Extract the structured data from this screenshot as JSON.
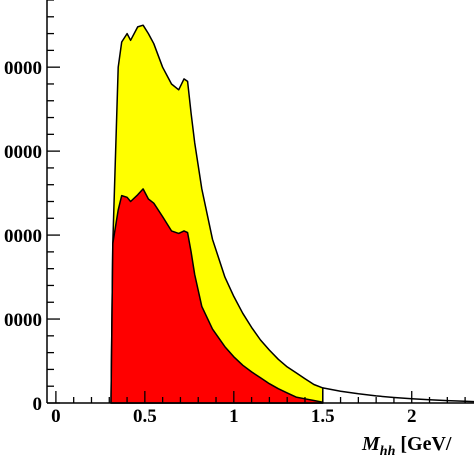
{
  "chart_data": {
    "type": "area",
    "title": "",
    "xlabel_symbol": "M",
    "xlabel_subscript": "hh",
    "xlabel_unit": "[GeV/",
    "ylabel": "",
    "xlim": [
      -0.05,
      2.35
    ],
    "ylim": [
      0,
      48000
    ],
    "x_ticks": [
      "0",
      "0.5",
      "1",
      "1.5",
      "2"
    ],
    "x_tick_values": [
      0,
      0.5,
      1,
      1.5,
      2
    ],
    "y_tick_labels": [
      "0",
      "0000",
      "0000",
      "0000",
      "0000"
    ],
    "y_tick_values": [
      0,
      10000,
      20000,
      30000,
      40000
    ],
    "grid": false,
    "legend": "none",
    "series": [
      {
        "color": "#ffff00",
        "x": [
          0.31,
          0.32,
          0.35,
          0.37,
          0.4,
          0.42,
          0.46,
          0.49,
          0.52,
          0.55,
          0.6,
          0.65,
          0.69,
          0.72,
          0.74,
          0.76,
          0.78,
          0.82,
          0.88,
          0.95,
          1.0,
          1.05,
          1.1,
          1.15,
          1.2,
          1.25,
          1.3,
          1.35,
          1.4,
          1.45,
          1.5
        ],
        "y": [
          0,
          19000,
          40000,
          43000,
          44000,
          43200,
          44800,
          45000,
          44000,
          42800,
          40000,
          38000,
          37300,
          38600,
          38300,
          34500,
          31000,
          25500,
          19500,
          15000,
          12700,
          10700,
          9000,
          7500,
          6300,
          5200,
          4300,
          3600,
          2900,
          2200,
          1800
        ]
      },
      {
        "color": "#ff0000",
        "x": [
          0.31,
          0.32,
          0.35,
          0.37,
          0.4,
          0.42,
          0.46,
          0.49,
          0.52,
          0.55,
          0.6,
          0.65,
          0.69,
          0.72,
          0.74,
          0.76,
          0.78,
          0.82,
          0.88,
          0.95,
          1.0,
          1.05,
          1.1,
          1.15,
          1.2,
          1.25,
          1.3,
          1.35,
          1.4,
          1.45,
          1.5
        ],
        "y": [
          0,
          19000,
          23000,
          24700,
          24500,
          24000,
          24800,
          25500,
          24300,
          23800,
          22200,
          20500,
          20200,
          20500,
          20300,
          18000,
          15300,
          11500,
          8800,
          6700,
          5500,
          4500,
          3700,
          3000,
          2300,
          1700,
          1200,
          700,
          500,
          300,
          100
        ]
      },
      {
        "color": "#ffffff",
        "x": [
          1.5,
          1.6,
          1.7,
          1.8,
          1.9,
          2.0,
          2.1,
          2.2,
          2.3,
          2.35
        ],
        "y": [
          1800,
          1400,
          1100,
          850,
          650,
          500,
          380,
          280,
          200,
          170
        ]
      }
    ]
  }
}
